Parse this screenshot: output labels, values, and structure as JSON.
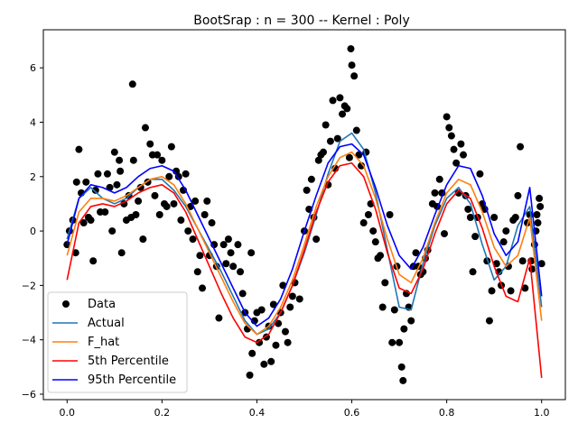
{
  "chart_data": {
    "type": "line",
    "title": "BootSrap : n = 300 -- Kernel : Poly",
    "xlabel": "",
    "ylabel": "",
    "xlim": [
      -0.05,
      1.05
    ],
    "ylim": [
      -6.2,
      7.4
    ],
    "grid": false,
    "legend_position": "lower-left",
    "xticks": [
      0.0,
      0.2,
      0.4,
      0.6,
      0.8,
      1.0
    ],
    "xtick_labels": [
      "0.0",
      "0.2",
      "0.4",
      "0.6",
      "0.8",
      "1.0"
    ],
    "yticks": [
      -6,
      -4,
      -2,
      0,
      2,
      4,
      6
    ],
    "ytick_labels": [
      "−6",
      "−4",
      "−2",
      "0",
      "2",
      "4",
      "6"
    ],
    "x": [
      0.0,
      0.025,
      0.05,
      0.075,
      0.1,
      0.125,
      0.15,
      0.175,
      0.2,
      0.225,
      0.25,
      0.275,
      0.3,
      0.325,
      0.35,
      0.375,
      0.4,
      0.425,
      0.45,
      0.475,
      0.5,
      0.525,
      0.55,
      0.575,
      0.6,
      0.625,
      0.65,
      0.675,
      0.7,
      0.725,
      0.75,
      0.775,
      0.8,
      0.825,
      0.85,
      0.875,
      0.9,
      0.925,
      0.95,
      0.975,
      1.0
    ],
    "series": [
      {
        "name": "Data",
        "style": "scatter",
        "color": "#000000"
      },
      {
        "name": "Actual",
        "color": "#1f77b4",
        "values": [
          -0.3,
          1.2,
          1.6,
          1.2,
          1.0,
          1.2,
          1.6,
          1.9,
          1.9,
          1.5,
          0.9,
          0.1,
          -0.7,
          -1.5,
          -2.4,
          -3.3,
          -3.8,
          -3.6,
          -3.0,
          -2.0,
          -0.8,
          0.6,
          2.1,
          3.3,
          3.6,
          3.0,
          1.4,
          -0.7,
          -2.8,
          -2.9,
          -1.2,
          0.2,
          1.2,
          1.6,
          1.0,
          -0.5,
          -1.8,
          -1.3,
          0.2,
          0.9,
          -2.8
        ]
      },
      {
        "name": "F_hat",
        "color": "#ff7f0e",
        "values": [
          -0.9,
          0.7,
          1.2,
          1.2,
          1.1,
          1.3,
          1.6,
          1.9,
          2.0,
          1.7,
          1.0,
          0.1,
          -0.8,
          -1.7,
          -2.6,
          -3.4,
          -3.8,
          -3.5,
          -2.8,
          -1.8,
          -0.5,
          0.9,
          2.0,
          2.7,
          2.9,
          2.4,
          1.2,
          -0.3,
          -1.6,
          -1.9,
          -1.0,
          0.3,
          1.4,
          1.9,
          1.7,
          0.7,
          -0.6,
          -1.3,
          -0.9,
          0.5,
          -3.3
        ]
      },
      {
        "name": "5th Percentile",
        "color": "#ff0000",
        "values": [
          -1.8,
          0.3,
          0.9,
          1.0,
          0.9,
          1.1,
          1.4,
          1.6,
          1.7,
          1.4,
          0.7,
          -0.3,
          -1.3,
          -2.3,
          -3.2,
          -3.9,
          -4.1,
          -3.8,
          -3.0,
          -2.0,
          -0.7,
          0.7,
          1.8,
          2.4,
          2.5,
          2.0,
          0.8,
          -0.8,
          -2.1,
          -2.3,
          -1.4,
          -0.1,
          1.0,
          1.5,
          1.2,
          0.1,
          -1.3,
          -2.4,
          -2.6,
          -1.0,
          -5.4
        ]
      },
      {
        "name": "95th Percentile",
        "color": "#0000ff",
        "values": [
          -0.5,
          1.2,
          1.7,
          1.6,
          1.4,
          1.6,
          2.0,
          2.3,
          2.4,
          2.2,
          1.5,
          0.6,
          -0.3,
          -1.2,
          -2.1,
          -3.0,
          -3.5,
          -3.2,
          -2.5,
          -1.4,
          0.0,
          1.3,
          2.5,
          3.1,
          3.2,
          2.8,
          1.6,
          0.2,
          -0.9,
          -1.4,
          -0.6,
          0.6,
          1.7,
          2.4,
          2.3,
          1.3,
          -0.1,
          -0.9,
          -0.4,
          1.6,
          -2.4
        ]
      }
    ],
    "scatter_points": [
      [
        0.0,
        -0.5
      ],
      [
        0.005,
        0.0
      ],
      [
        0.012,
        0.4
      ],
      [
        0.018,
        -0.8
      ],
      [
        0.02,
        1.8
      ],
      [
        0.025,
        3.0
      ],
      [
        0.03,
        1.4
      ],
      [
        0.035,
        0.3
      ],
      [
        0.04,
        1.8
      ],
      [
        0.045,
        0.5
      ],
      [
        0.05,
        0.4
      ],
      [
        0.055,
        -1.1
      ],
      [
        0.06,
        1.5
      ],
      [
        0.065,
        2.1
      ],
      [
        0.07,
        0.7
      ],
      [
        0.08,
        0.7
      ],
      [
        0.085,
        2.1
      ],
      [
        0.09,
        1.6
      ],
      [
        0.095,
        0.0
      ],
      [
        0.1,
        2.9
      ],
      [
        0.105,
        1.7
      ],
      [
        0.11,
        2.6
      ],
      [
        0.112,
        2.2
      ],
      [
        0.115,
        -0.8
      ],
      [
        0.12,
        1.0
      ],
      [
        0.125,
        0.4
      ],
      [
        0.13,
        1.3
      ],
      [
        0.135,
        0.5
      ],
      [
        0.138,
        5.4
      ],
      [
        0.14,
        2.6
      ],
      [
        0.145,
        0.6
      ],
      [
        0.15,
        1.1
      ],
      [
        0.155,
        1.6
      ],
      [
        0.16,
        -0.3
      ],
      [
        0.165,
        3.8
      ],
      [
        0.17,
        1.8
      ],
      [
        0.175,
        3.2
      ],
      [
        0.18,
        2.8
      ],
      [
        0.185,
        1.3
      ],
      [
        0.19,
        2.8
      ],
      [
        0.195,
        0.6
      ],
      [
        0.2,
        2.6
      ],
      [
        0.205,
        1.0
      ],
      [
        0.21,
        0.9
      ],
      [
        0.215,
        2.0
      ],
      [
        0.22,
        3.1
      ],
      [
        0.225,
        1.0
      ],
      [
        0.23,
        2.2
      ],
      [
        0.235,
        2.0
      ],
      [
        0.24,
        0.4
      ],
      [
        0.245,
        1.5
      ],
      [
        0.25,
        2.1
      ],
      [
        0.255,
        0.0
      ],
      [
        0.26,
        0.9
      ],
      [
        0.265,
        -0.3
      ],
      [
        0.27,
        1.1
      ],
      [
        0.275,
        -1.5
      ],
      [
        0.28,
        -0.9
      ],
      [
        0.285,
        -2.1
      ],
      [
        0.29,
        0.6
      ],
      [
        0.295,
        1.1
      ],
      [
        0.3,
        -0.9
      ],
      [
        0.305,
        0.3
      ],
      [
        0.31,
        -0.5
      ],
      [
        0.315,
        -1.3
      ],
      [
        0.32,
        -3.2
      ],
      [
        0.33,
        -0.5
      ],
      [
        0.335,
        -1.2
      ],
      [
        0.34,
        -0.3
      ],
      [
        0.345,
        -0.8
      ],
      [
        0.35,
        -1.3
      ],
      [
        0.36,
        -0.5
      ],
      [
        0.365,
        -1.5
      ],
      [
        0.37,
        -2.3
      ],
      [
        0.375,
        -3.0
      ],
      [
        0.38,
        -3.6
      ],
      [
        0.385,
        -5.3
      ],
      [
        0.388,
        -0.8
      ],
      [
        0.39,
        -4.5
      ],
      [
        0.395,
        -3.3
      ],
      [
        0.4,
        -3.0
      ],
      [
        0.405,
        -4.1
      ],
      [
        0.41,
        -2.9
      ],
      [
        0.415,
        -4.9
      ],
      [
        0.42,
        -3.9
      ],
      [
        0.425,
        -3.5
      ],
      [
        0.43,
        -4.8
      ],
      [
        0.435,
        -2.7
      ],
      [
        0.44,
        -4.2
      ],
      [
        0.445,
        -3.4
      ],
      [
        0.45,
        -3.0
      ],
      [
        0.455,
        -2.0
      ],
      [
        0.46,
        -3.7
      ],
      [
        0.465,
        -4.1
      ],
      [
        0.47,
        -2.8
      ],
      [
        0.475,
        -2.4
      ],
      [
        0.48,
        -1.9
      ],
      [
        0.49,
        -2.5
      ],
      [
        0.5,
        0.0
      ],
      [
        0.505,
        1.5
      ],
      [
        0.51,
        0.8
      ],
      [
        0.515,
        1.9
      ],
      [
        0.52,
        0.5
      ],
      [
        0.525,
        -0.3
      ],
      [
        0.53,
        2.6
      ],
      [
        0.535,
        2.8
      ],
      [
        0.54,
        2.9
      ],
      [
        0.545,
        3.9
      ],
      [
        0.55,
        1.7
      ],
      [
        0.555,
        3.3
      ],
      [
        0.56,
        4.8
      ],
      [
        0.565,
        2.3
      ],
      [
        0.57,
        3.4
      ],
      [
        0.575,
        4.9
      ],
      [
        0.58,
        4.3
      ],
      [
        0.585,
        4.6
      ],
      [
        0.59,
        4.5
      ],
      [
        0.595,
        2.7
      ],
      [
        0.598,
        6.7
      ],
      [
        0.6,
        6.1
      ],
      [
        0.605,
        5.7
      ],
      [
        0.61,
        3.7
      ],
      [
        0.615,
        2.8
      ],
      [
        0.62,
        2.4
      ],
      [
        0.625,
        0.3
      ],
      [
        0.63,
        2.9
      ],
      [
        0.635,
        0.6
      ],
      [
        0.64,
        1.0
      ],
      [
        0.645,
        0.0
      ],
      [
        0.65,
        -0.4
      ],
      [
        0.655,
        -1.0
      ],
      [
        0.66,
        -0.9
      ],
      [
        0.665,
        -2.8
      ],
      [
        0.67,
        -1.9
      ],
      [
        0.68,
        0.6
      ],
      [
        0.685,
        -4.1
      ],
      [
        0.69,
        -2.9
      ],
      [
        0.695,
        -1.3
      ],
      [
        0.7,
        -4.1
      ],
      [
        0.705,
        -5.0
      ],
      [
        0.708,
        -5.5
      ],
      [
        0.71,
        -3.6
      ],
      [
        0.715,
        -2.3
      ],
      [
        0.72,
        -2.8
      ],
      [
        0.725,
        -3.3
      ],
      [
        0.73,
        -1.3
      ],
      [
        0.735,
        -0.8
      ],
      [
        0.74,
        -1.3
      ],
      [
        0.745,
        -1.6
      ],
      [
        0.75,
        -1.5
      ],
      [
        0.755,
        -1.0
      ],
      [
        0.76,
        -0.7
      ],
      [
        0.77,
        1.0
      ],
      [
        0.775,
        1.4
      ],
      [
        0.78,
        0.9
      ],
      [
        0.785,
        1.9
      ],
      [
        0.79,
        1.4
      ],
      [
        0.795,
        -0.1
      ],
      [
        0.8,
        4.2
      ],
      [
        0.805,
        3.8
      ],
      [
        0.81,
        3.5
      ],
      [
        0.815,
        3.0
      ],
      [
        0.82,
        2.5
      ],
      [
        0.825,
        1.4
      ],
      [
        0.83,
        3.2
      ],
      [
        0.835,
        2.8
      ],
      [
        0.84,
        1.3
      ],
      [
        0.845,
        0.8
      ],
      [
        0.85,
        0.5
      ],
      [
        0.855,
        -1.5
      ],
      [
        0.86,
        -0.2
      ],
      [
        0.865,
        0.5
      ],
      [
        0.87,
        2.1
      ],
      [
        0.875,
        1.0
      ],
      [
        0.88,
        0.8
      ],
      [
        0.885,
        -1.1
      ],
      [
        0.89,
        -3.3
      ],
      [
        0.895,
        -2.2
      ],
      [
        0.9,
        0.5
      ],
      [
        0.905,
        -1.2
      ],
      [
        0.91,
        -1.5
      ],
      [
        0.915,
        -2.0
      ],
      [
        0.92,
        -0.4
      ],
      [
        0.925,
        0.0
      ],
      [
        0.93,
        -1.3
      ],
      [
        0.935,
        -2.2
      ],
      [
        0.94,
        0.4
      ],
      [
        0.945,
        0.5
      ],
      [
        0.95,
        1.3
      ],
      [
        0.955,
        3.1
      ],
      [
        0.96,
        -1.1
      ],
      [
        0.965,
        -2.1
      ],
      [
        0.97,
        0.3
      ],
      [
        0.975,
        0.6
      ],
      [
        0.978,
        -1.1
      ],
      [
        0.98,
        -1.4
      ],
      [
        0.985,
        -0.5
      ],
      [
        0.988,
        0.0
      ],
      [
        0.99,
        0.6
      ],
      [
        0.992,
        0.3
      ],
      [
        0.995,
        1.2
      ],
      [
        0.997,
        0.9
      ],
      [
        1.0,
        -1.2
      ]
    ]
  }
}
